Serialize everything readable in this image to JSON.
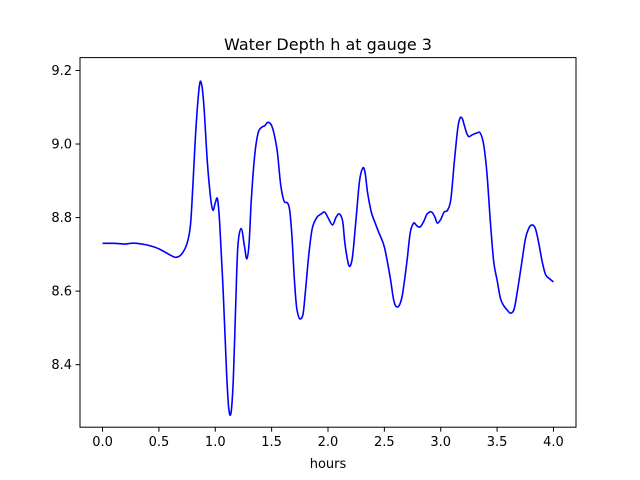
{
  "chart_data": {
    "type": "line",
    "title": "Water Depth h at gauge 3",
    "xlabel": "hours",
    "ylabel": "",
    "xlim": [
      -0.2,
      4.2
    ],
    "ylim": [
      8.23,
      9.235
    ],
    "xticks": [
      0.0,
      0.5,
      1.0,
      1.5,
      2.0,
      2.5,
      3.0,
      3.5,
      4.0
    ],
    "xtick_labels": [
      "0.0",
      "0.5",
      "1.0",
      "1.5",
      "2.0",
      "2.5",
      "3.0",
      "3.5",
      "4.0"
    ],
    "yticks": [
      8.4,
      8.6,
      8.8,
      9.0,
      9.2
    ],
    "ytick_labels": [
      "8.4",
      "8.6",
      "8.8",
      "9.0",
      "9.2"
    ],
    "grid": false,
    "series": [
      {
        "color": "#0000ff",
        "x": [
          0.0,
          0.1,
          0.2,
          0.25,
          0.3,
          0.4,
          0.5,
          0.6,
          0.65,
          0.7,
          0.75,
          0.78,
          0.8,
          0.83,
          0.86,
          0.88,
          0.9,
          0.93,
          0.96,
          0.98,
          1.0,
          1.02,
          1.04,
          1.07,
          1.1,
          1.12,
          1.14,
          1.16,
          1.18,
          1.2,
          1.23,
          1.26,
          1.28,
          1.3,
          1.32,
          1.35,
          1.38,
          1.41,
          1.44,
          1.46,
          1.48,
          1.5,
          1.52,
          1.55,
          1.58,
          1.61,
          1.64,
          1.66,
          1.68,
          1.7,
          1.72,
          1.74,
          1.76,
          1.78,
          1.8,
          1.83,
          1.86,
          1.9,
          1.94,
          1.97,
          2.0,
          2.04,
          2.07,
          2.1,
          2.13,
          2.15,
          2.18,
          2.2,
          2.22,
          2.25,
          2.28,
          2.31,
          2.33,
          2.35,
          2.38,
          2.4,
          2.45,
          2.5,
          2.55,
          2.58,
          2.6,
          2.63,
          2.66,
          2.7,
          2.73,
          2.76,
          2.78,
          2.8,
          2.82,
          2.85,
          2.88,
          2.92,
          2.95,
          2.97,
          3.0,
          3.03,
          3.06,
          3.09,
          3.12,
          3.15,
          3.17,
          3.19,
          3.21,
          3.23,
          3.25,
          3.28,
          3.32,
          3.35,
          3.38,
          3.41,
          3.44,
          3.47,
          3.5,
          3.53,
          3.56,
          3.6,
          3.62,
          3.65,
          3.68,
          3.72,
          3.75,
          3.78,
          3.81,
          3.84,
          3.87,
          3.9,
          3.93,
          3.96,
          4.0
        ],
        "y": [
          8.73,
          8.73,
          8.728,
          8.73,
          8.73,
          8.725,
          8.715,
          8.698,
          8.692,
          8.7,
          8.73,
          8.78,
          8.88,
          9.05,
          9.16,
          9.16,
          9.1,
          8.95,
          8.85,
          8.82,
          8.84,
          8.85,
          8.78,
          8.6,
          8.38,
          8.28,
          8.27,
          8.36,
          8.55,
          8.72,
          8.77,
          8.72,
          8.688,
          8.73,
          8.85,
          8.97,
          9.03,
          9.045,
          9.05,
          9.058,
          9.058,
          9.05,
          9.03,
          8.98,
          8.89,
          8.845,
          8.84,
          8.82,
          8.75,
          8.64,
          8.56,
          8.53,
          8.525,
          8.54,
          8.6,
          8.7,
          8.77,
          8.8,
          8.81,
          8.815,
          8.8,
          8.78,
          8.8,
          8.81,
          8.79,
          8.73,
          8.675,
          8.67,
          8.7,
          8.8,
          8.9,
          8.935,
          8.92,
          8.87,
          8.82,
          8.8,
          8.76,
          8.72,
          8.64,
          8.58,
          8.56,
          8.56,
          8.59,
          8.68,
          8.76,
          8.785,
          8.78,
          8.775,
          8.775,
          8.79,
          8.81,
          8.815,
          8.8,
          8.785,
          8.795,
          8.815,
          8.82,
          8.85,
          8.95,
          9.04,
          9.07,
          9.07,
          9.05,
          9.03,
          9.02,
          9.025,
          9.03,
          9.03,
          9.0,
          8.92,
          8.79,
          8.68,
          8.63,
          8.58,
          8.56,
          8.545,
          8.54,
          8.55,
          8.6,
          8.68,
          8.74,
          8.77,
          8.78,
          8.77,
          8.73,
          8.68,
          8.645,
          8.635,
          8.625
        ]
      }
    ]
  }
}
